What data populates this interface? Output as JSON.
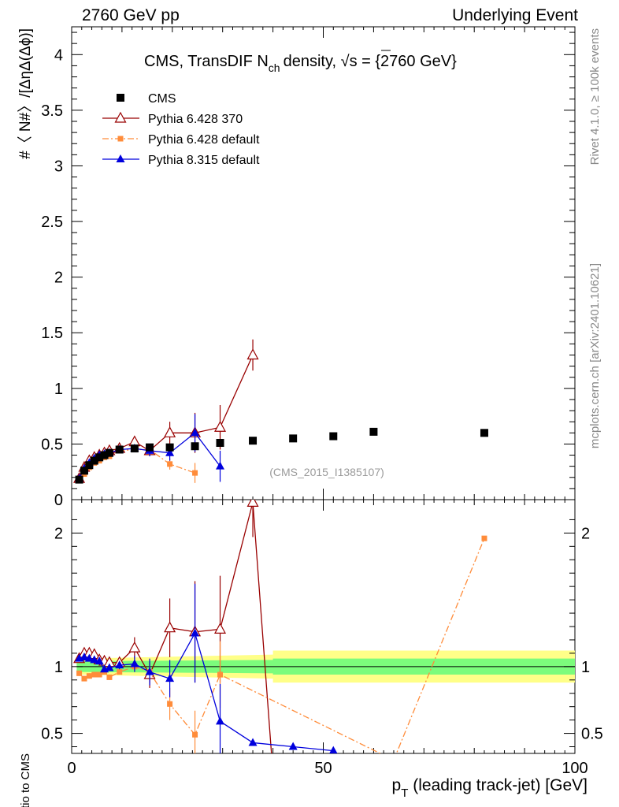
{
  "header": {
    "left": "2760 GeV pp",
    "right": "Underlying Event"
  },
  "side_labels": {
    "rivet": "Rivet 4.1.0, ≥ 100k events",
    "mcplots": "mcplots.cern.ch [arXiv:2401.10621]"
  },
  "chart_data": {
    "type": "scatter",
    "title": "CMS, TransDIF N",
    "title_sub": "ch",
    "title_tail": "density, ",
    "title_sqrt": "√s",
    "title_energy": " = {2760 GeV}",
    "watermark": "(CMS_2015_I1385107)",
    "ylabel": "#〈 N#〉/[ΔηΔ(Δϕ)]",
    "ratio_ylabel": "Ratio to CMS",
    "xlabel_main": "p",
    "xlabel_sub": "T",
    "xlabel_tail": " (leading track-jet) [GeV]",
    "xlim": [
      0,
      100
    ],
    "ylim": [
      0,
      4.25
    ],
    "ratio_ylim": [
      0.35,
      2.25
    ],
    "x_ticks": [
      "0",
      "50",
      "100"
    ],
    "y_ticks": [
      "0",
      "0.5",
      "1",
      "1.5",
      "2",
      "2.5",
      "3",
      "3.5",
      "4"
    ],
    "ratio_ticks": [
      "0.5",
      "1",
      "2"
    ],
    "series": [
      {
        "name": "CMS",
        "style": "data",
        "color": "#000000",
        "x": [
          1.5,
          2.5,
          3.5,
          4.5,
          5.5,
          6.5,
          7.5,
          9.5,
          12.5,
          15.5,
          19.5,
          24.5,
          29.5,
          36,
          44,
          52,
          60,
          82
        ],
        "y": [
          0.18,
          0.26,
          0.31,
          0.35,
          0.38,
          0.4,
          0.42,
          0.45,
          0.46,
          0.47,
          0.47,
          0.48,
          0.51,
          0.53,
          0.55,
          0.57,
          0.61,
          0.6
        ]
      },
      {
        "name": "Pythia 6.428 370",
        "style": "open-triangle",
        "color": "#990000",
        "x": [
          1.5,
          2.5,
          3.5,
          4.5,
          5.5,
          6.5,
          7.5,
          9.5,
          12.5,
          15.5,
          19.5,
          24.5,
          29.5,
          36
        ],
        "y": [
          0.19,
          0.29,
          0.35,
          0.38,
          0.4,
          0.42,
          0.44,
          0.46,
          0.52,
          0.44,
          0.6,
          0.6,
          0.65,
          1.3
        ],
        "yerr": [
          0.01,
          0.01,
          0.01,
          0.01,
          0.01,
          0.01,
          0.01,
          0.02,
          0.04,
          0.05,
          0.1,
          0.18,
          0.2,
          0.14
        ],
        "ratio": [
          1.06,
          1.1,
          1.1,
          1.09,
          1.05,
          1.04,
          1.03,
          1.03,
          1.14,
          0.94,
          1.29,
          1.26,
          1.28,
          2.23
        ],
        "ratio_err": [
          0.03,
          0.03,
          0.03,
          0.03,
          0.03,
          0.03,
          0.03,
          0.04,
          0.08,
          0.1,
          0.22,
          0.38,
          0.4,
          0.26
        ],
        "ratio_extra_x": [
          40
        ],
        "ratio_extra_y": [
          0.2
        ]
      },
      {
        "name": "Pythia 6.428 default",
        "style": "square-dashdot",
        "color": "#ff8c3a",
        "x": [
          1.5,
          2.5,
          3.5,
          4.5,
          5.5,
          6.5,
          7.5,
          9.5,
          12.5,
          15.5,
          19.5,
          24.5
        ],
        "y": [
          0.17,
          0.23,
          0.29,
          0.33,
          0.35,
          0.38,
          0.39,
          0.44,
          0.45,
          0.45,
          0.32,
          0.24
        ],
        "yerr": [
          0.01,
          0.01,
          0.01,
          0.01,
          0.01,
          0.01,
          0.01,
          0.01,
          0.02,
          0.04,
          0.05,
          0.09
        ],
        "ratio": [
          0.95,
          0.91,
          0.93,
          0.94,
          0.94,
          0.96,
          0.92,
          0.96,
          1.0,
          0.96,
          0.72,
          0.49,
          0.94,
          1.96
        ],
        "ratio_x": [
          1.5,
          2.5,
          3.5,
          4.5,
          5.5,
          6.5,
          7.5,
          9.5,
          12.5,
          15.5,
          19.5,
          24.5,
          29.5,
          82
        ],
        "ratio_err": [
          0.02,
          0.02,
          0.02,
          0.02,
          0.02,
          0.02,
          0.02,
          0.02,
          0.04,
          0.08,
          0.12,
          0.18,
          0.25,
          0.0
        ],
        "ratio_extra_x": [
          64
        ],
        "ratio_extra_y": [
          0.3
        ]
      },
      {
        "name": "Pythia 8.315 default",
        "style": "filled-triangle",
        "color": "#0000dd",
        "x": [
          1.5,
          2.5,
          3.5,
          4.5,
          5.5,
          6.5,
          7.5,
          9.5,
          12.5,
          15.5,
          19.5,
          24.5,
          29.5
        ],
        "y": [
          0.19,
          0.28,
          0.33,
          0.37,
          0.4,
          0.41,
          0.42,
          0.45,
          0.46,
          0.44,
          0.42,
          0.6,
          0.3
        ],
        "yerr": [
          0.01,
          0.01,
          0.01,
          0.01,
          0.01,
          0.01,
          0.01,
          0.02,
          0.03,
          0.05,
          0.07,
          0.17,
          0.14
        ],
        "ratio_x": [
          1.5,
          2.5,
          3.5,
          4.5,
          5.5,
          6.5,
          7.5,
          9.5,
          12.5,
          15.5,
          19.5,
          24.5,
          29.5,
          36,
          44,
          52
        ],
        "ratio": [
          1.06,
          1.07,
          1.06,
          1.05,
          1.04,
          0.98,
          0.99,
          1.01,
          1.02,
          0.96,
          0.91,
          1.25,
          0.59,
          0.43,
          0.4,
          0.37
        ],
        "ratio_err": [
          0.02,
          0.02,
          0.02,
          0.02,
          0.02,
          0.02,
          0.02,
          0.03,
          0.06,
          0.1,
          0.14,
          0.37,
          0.28,
          0.0,
          0.0,
          0.0
        ]
      }
    ],
    "band": {
      "x": [
        1,
        40,
        40,
        100
      ],
      "stat_half": [
        0.04,
        0.05,
        0.06,
        0.06
      ],
      "total_half": [
        0.06,
        0.09,
        0.12,
        0.12
      ],
      "green": "#7cfc7c",
      "yellow": "#ffff88"
    }
  }
}
